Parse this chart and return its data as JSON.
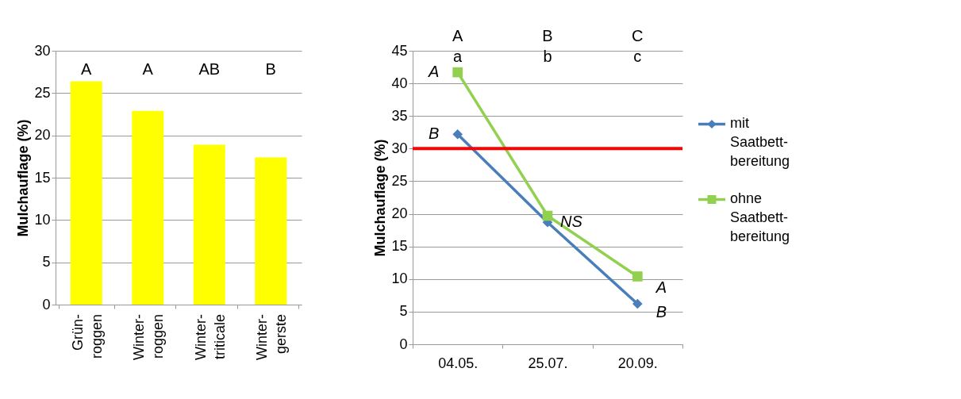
{
  "chart_data": [
    {
      "type": "bar",
      "ylabel": "Mulchauflage (%)",
      "categories": [
        "Grün-roggen",
        "Winter-roggen",
        "Winter-triticale",
        "Winter-gerste"
      ],
      "values": [
        26.4,
        22.9,
        18.9,
        17.4
      ],
      "color": "#ffff00",
      "ylim": [
        0,
        30
      ],
      "yticks": [
        0,
        5,
        10,
        15,
        20,
        25,
        30
      ],
      "grid": "y",
      "annotations": [
        "A",
        "A",
        "AB",
        "B"
      ]
    },
    {
      "type": "line",
      "ylabel": "Mulchauflage (%)",
      "categories": [
        "04.05.",
        "25.07.",
        "20.09."
      ],
      "series": [
        {
          "name": "mit Saatbett-bereitung",
          "color": "#4a7ebb",
          "marker": "diamond",
          "values": [
            32.2,
            18.7,
            6.2
          ]
        },
        {
          "name": "ohne Saatbett-bereitung",
          "color": "#92d050",
          "marker": "square",
          "values": [
            41.7,
            19.7,
            10.4
          ]
        }
      ],
      "ylim": [
        0,
        45
      ],
      "yticks": [
        0,
        5,
        10,
        15,
        20,
        25,
        30,
        35,
        40,
        45
      ],
      "grid": "y",
      "legend": "right",
      "line_style": "solid",
      "ref_lines": [
        {
          "axis": "y",
          "value": 30,
          "color": "#ff0000"
        }
      ],
      "annotations": [
        "A",
        "a",
        "B",
        "b",
        "C",
        "c",
        {
          "text": "A",
          "x": "04.05.",
          "y": 41.7
        },
        {
          "text": "B",
          "x": "04.05.",
          "y": 32.2
        },
        {
          "text": "NS",
          "x": "25.07.",
          "y": 19.4
        },
        {
          "text": "A",
          "x": "20.09.",
          "y": 9.4
        },
        {
          "text": "B",
          "x": "20.09.",
          "y": 5.6
        }
      ]
    }
  ]
}
